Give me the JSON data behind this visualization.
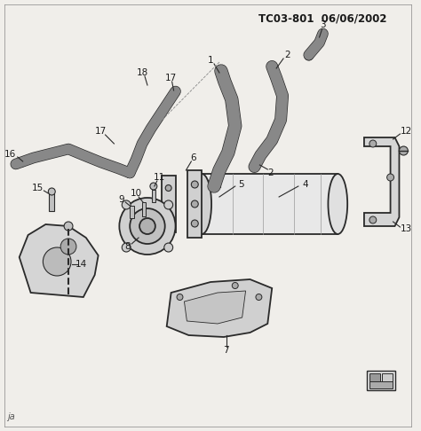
{
  "title": "TC03-801  06/06/2002",
  "bg_color": "#f0eeea",
  "fig_width": 4.74,
  "fig_height": 4.86,
  "dpi": 100,
  "corner_label": "ja",
  "line_color": "#2a2a2a",
  "text_color": "#1a1a1a",
  "title_fontsize": 8.5,
  "label_fontsize": 7.5,
  "gray_light": "#e8e8e8",
  "gray_mid": "#d0d0d0",
  "gray_dark": "#aaaaaa",
  "gray_fill": "#c0c0c0",
  "hose_fill": "#888888"
}
